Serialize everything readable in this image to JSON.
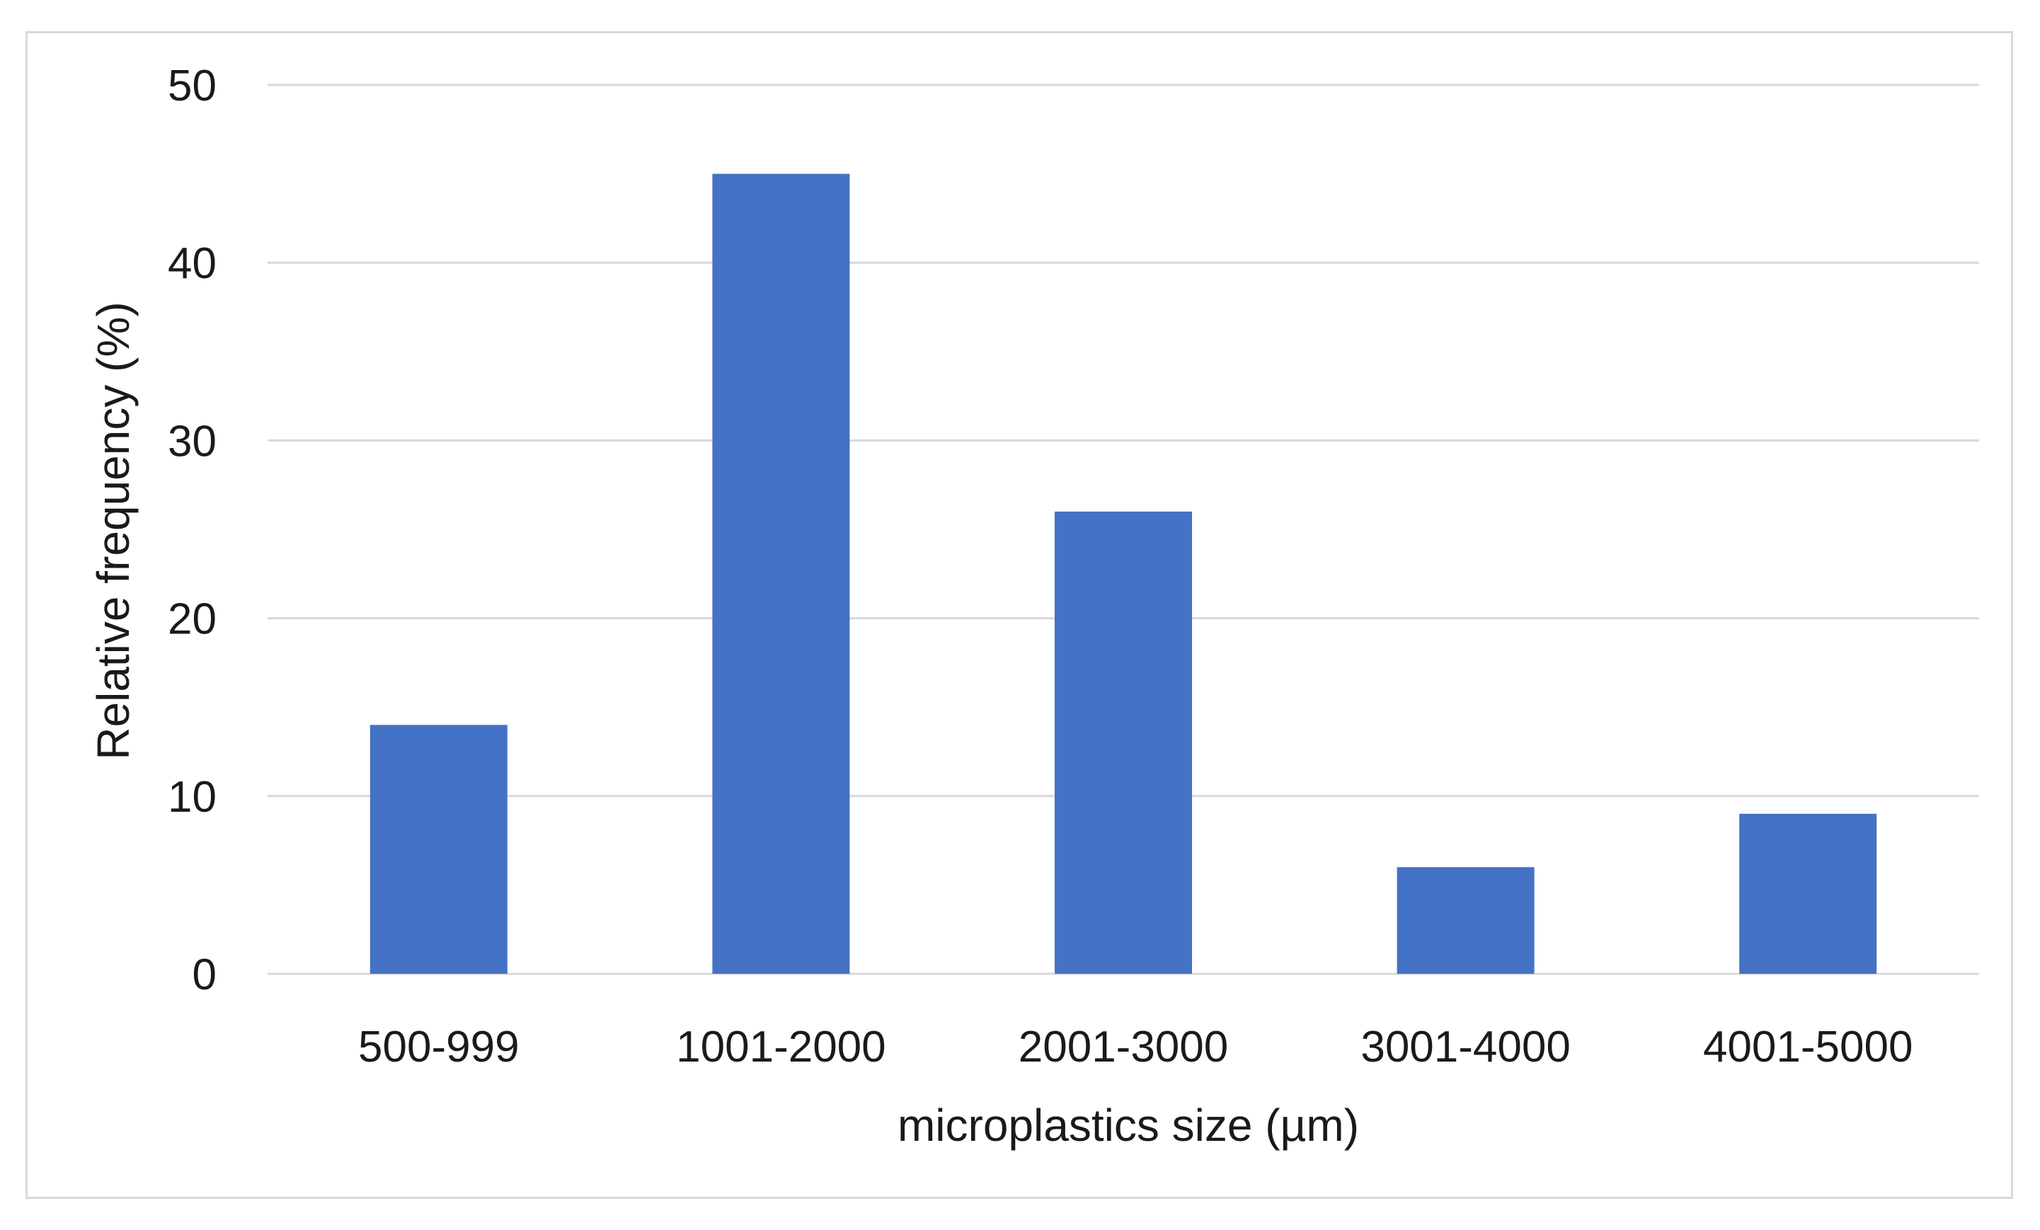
{
  "chart_data": {
    "type": "bar",
    "title": "",
    "xlabel": "microplastics size  (µm)",
    "ylabel": "Relative frequency (%)",
    "categories": [
      "500-999",
      "1001-2000",
      "2001-3000",
      "3001-4000",
      "4001-5000"
    ],
    "values": [
      14,
      45,
      26,
      6,
      9
    ],
    "ylim": [
      0,
      50
    ],
    "yticks": [
      0,
      10,
      20,
      30,
      40,
      50
    ],
    "grid": true,
    "legend": "none",
    "colors": {
      "bar": "#4472c4",
      "grid": "#d9d9d9",
      "text": "#1a1a1a"
    }
  }
}
